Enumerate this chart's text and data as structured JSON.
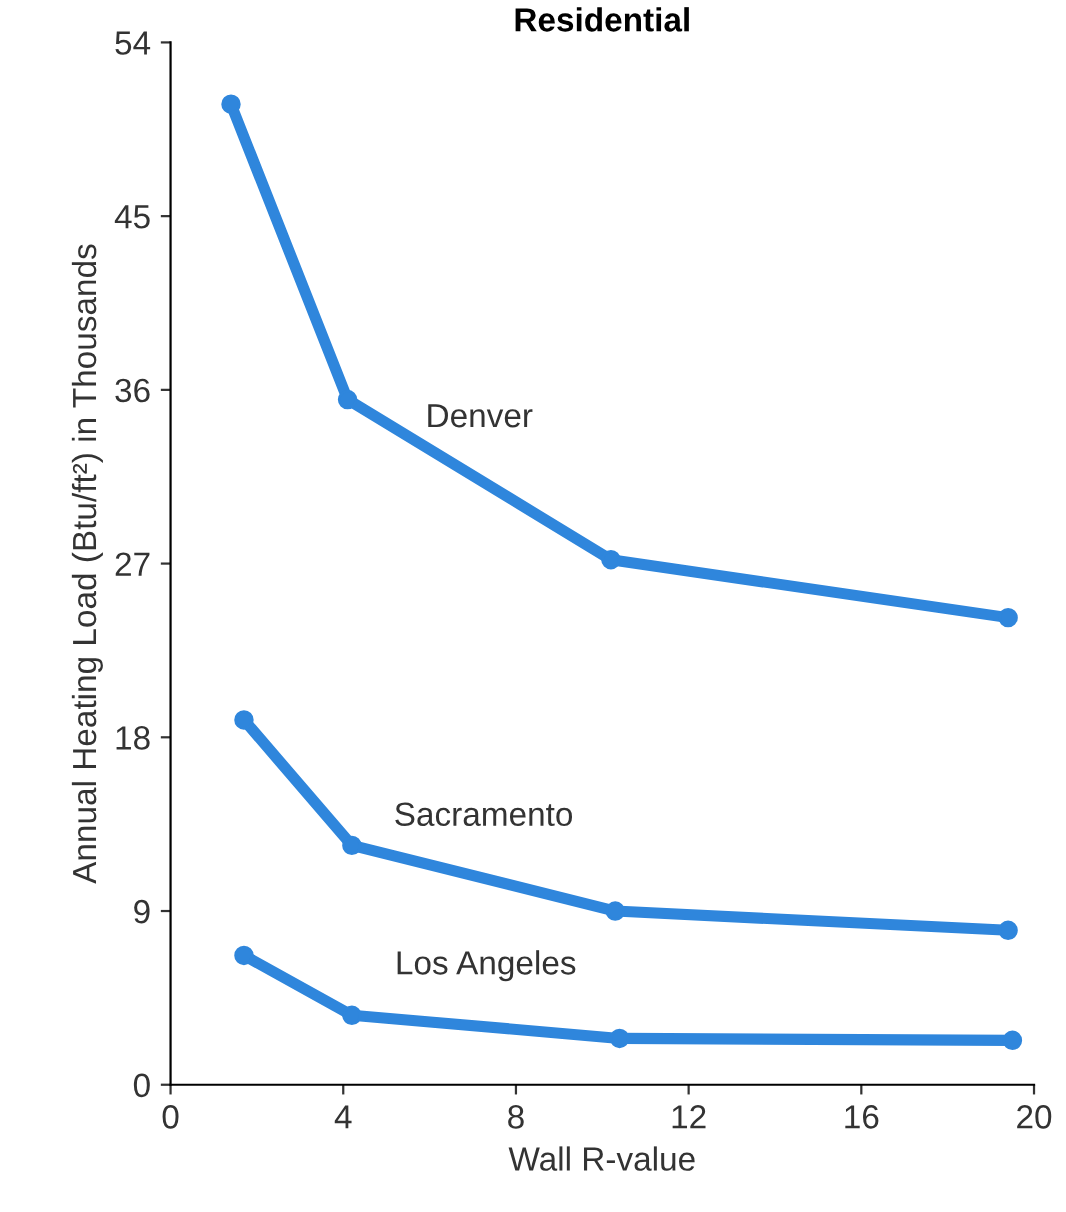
{
  "chart_data": {
    "type": "line",
    "title": "Residential",
    "xlabel": "Wall R-value",
    "ylabel": "Annual Heating Load (Btu/ft²) in Thousands",
    "xlim": [
      0,
      20
    ],
    "xticks": [
      0,
      4,
      8,
      12,
      16,
      20
    ],
    "ylim": [
      0,
      54
    ],
    "yticks": [
      0,
      9,
      18,
      27,
      36,
      45,
      54
    ],
    "grid": false,
    "marker": "circle",
    "line_style": "solid",
    "legend": false,
    "series": [
      {
        "name": "Denver",
        "color": "#2f86dc",
        "x": [
          1.4,
          4.1,
          10.2,
          19.4
        ],
        "values": [
          50.8,
          35.5,
          27.2,
          24.2
        ]
      },
      {
        "name": "Sacramento",
        "color": "#2f86dc",
        "x": [
          1.7,
          4.2,
          10.3,
          19.4
        ],
        "values": [
          18.9,
          12.4,
          9.0,
          8.0
        ]
      },
      {
        "name": "Los Angeles",
        "color": "#2f86dc",
        "x": [
          1.7,
          4.2,
          10.4,
          19.5
        ],
        "values": [
          6.7,
          3.6,
          2.4,
          2.3
        ]
      }
    ]
  }
}
